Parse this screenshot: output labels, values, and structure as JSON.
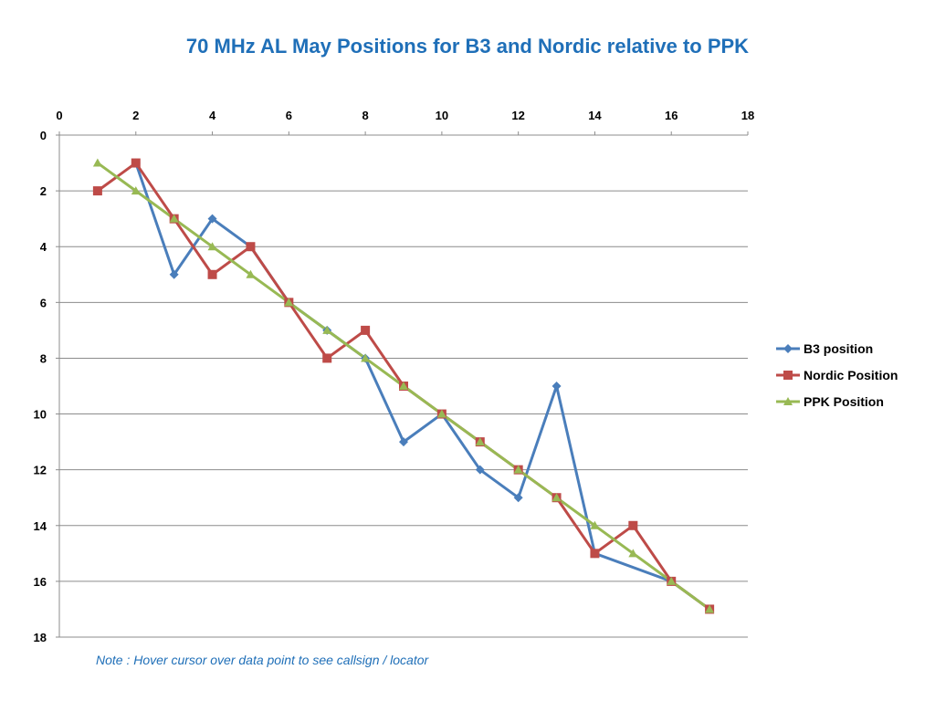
{
  "chart_data": {
    "type": "line",
    "title": "70 MHz AL May Positions for B3 and Nordic relative to PPK",
    "xlim": [
      0,
      18
    ],
    "ylim": [
      0,
      18
    ],
    "x_ticks": [
      0,
      2,
      4,
      6,
      8,
      10,
      12,
      14,
      16,
      18
    ],
    "y_ticks": [
      0,
      2,
      4,
      6,
      8,
      10,
      12,
      14,
      16,
      18
    ],
    "x_axis_position": "top",
    "y_axis_reversed": true,
    "grid": "horizontal",
    "legend_position": "right",
    "x": [
      1,
      2,
      3,
      4,
      5,
      6,
      7,
      8,
      9,
      10,
      11,
      12,
      13,
      14,
      15,
      16,
      17
    ],
    "series": [
      {
        "name": "B3 position",
        "color": "#4a7ebb",
        "marker": "diamond",
        "values": [
          null,
          1,
          5,
          3,
          4,
          6,
          7,
          8,
          11,
          10,
          12,
          13,
          9,
          15,
          null,
          16,
          17
        ]
      },
      {
        "name": "Nordic Position",
        "color": "#be4b48",
        "marker": "square",
        "values": [
          2,
          1,
          3,
          5,
          4,
          6,
          8,
          7,
          9,
          10,
          11,
          12,
          13,
          15,
          14,
          16,
          17
        ]
      },
      {
        "name": "PPK Position",
        "color": "#98b954",
        "marker": "triangle",
        "values": [
          1,
          2,
          3,
          4,
          5,
          6,
          7,
          8,
          9,
          10,
          11,
          12,
          13,
          14,
          15,
          16,
          17
        ]
      }
    ]
  },
  "colors": {
    "title": "#1f6fb8",
    "note": "#1f6fb8",
    "grid": "#8c8c8c",
    "axis": "#8c8c8c"
  },
  "note": "Note : Hover cursor over data point to see callsign / locator"
}
